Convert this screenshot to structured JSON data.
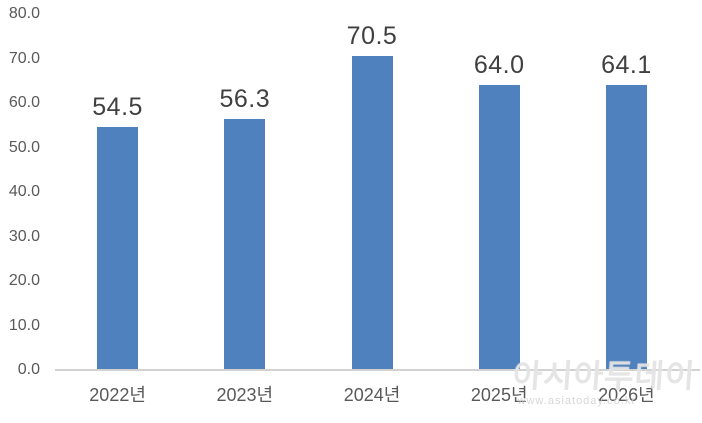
{
  "chart_data": {
    "type": "bar",
    "categories": [
      "2022년",
      "2023년",
      "2024년",
      "2025년",
      "2026년"
    ],
    "values": [
      54.5,
      56.3,
      70.5,
      64.0,
      64.1
    ],
    "value_labels": [
      "54.5",
      "56.3",
      "70.5",
      "64.0",
      "64.1"
    ],
    "title": "",
    "xlabel": "",
    "ylabel": "",
    "ylim": [
      0,
      80
    ],
    "ytick_values": [
      0,
      10,
      20,
      30,
      40,
      50,
      60,
      70,
      80
    ],
    "ytick_labels": [
      "0.0",
      "10.0",
      "20.0",
      "30.0",
      "40.0",
      "50.0",
      "60.0",
      "70.0",
      "80.0"
    ],
    "grid": false,
    "legend": false,
    "bar_color": "#4e81bd"
  },
  "colors": {
    "bar": "#4e81bd",
    "value_label": "#404040",
    "axis_label": "#595959",
    "axis_line": "#d2d2d2",
    "background": "#ffffff",
    "watermark": "#d0d0d0"
  },
  "watermark": {
    "main": "아시아투데이",
    "sub": "www.asiatoday.co.kr"
  }
}
